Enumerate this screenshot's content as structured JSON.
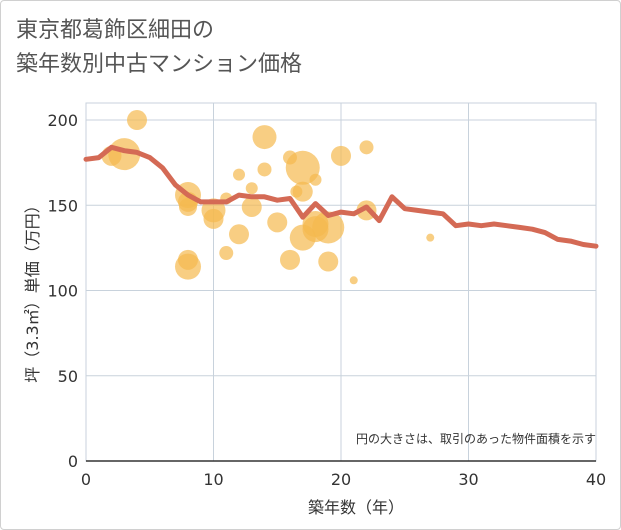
{
  "title": {
    "line1": "東京都葛飾区細田の",
    "line2": "築年数別中古マンション価格"
  },
  "colors": {
    "bubble": "#f5b94e",
    "line": "#d46a55",
    "grid": "#c8d2dc",
    "axis": "#333333"
  },
  "chart_data": {
    "type": "scatter",
    "xlabel": "築年数（年）",
    "ylabel": "坪（3.3㎡）単価（万円）",
    "xlim": [
      0,
      40
    ],
    "ylim": [
      0,
      210
    ],
    "xticks": [
      0,
      10,
      20,
      30,
      40
    ],
    "yticks": [
      0,
      50,
      100,
      150,
      200
    ],
    "grid": true,
    "annotation": "円の大きさは、取引のあった物件面積を示す",
    "bubbles": [
      {
        "x": 2,
        "y": 179,
        "s": 10
      },
      {
        "x": 3,
        "y": 180,
        "s": 16
      },
      {
        "x": 4,
        "y": 200,
        "s": 10
      },
      {
        "x": 8,
        "y": 156,
        "s": 13
      },
      {
        "x": 8,
        "y": 152,
        "s": 10
      },
      {
        "x": 8,
        "y": 149,
        "s": 9
      },
      {
        "x": 8,
        "y": 118,
        "s": 10
      },
      {
        "x": 8,
        "y": 114,
        "s": 13
      },
      {
        "x": 10,
        "y": 147,
        "s": 12
      },
      {
        "x": 10,
        "y": 142,
        "s": 10
      },
      {
        "x": 11,
        "y": 154,
        "s": 6
      },
      {
        "x": 11,
        "y": 122,
        "s": 7
      },
      {
        "x": 12,
        "y": 168,
        "s": 6
      },
      {
        "x": 12,
        "y": 133,
        "s": 10
      },
      {
        "x": 13,
        "y": 160,
        "s": 6
      },
      {
        "x": 13,
        "y": 149,
        "s": 10
      },
      {
        "x": 14,
        "y": 190,
        "s": 12
      },
      {
        "x": 14,
        "y": 171,
        "s": 7
      },
      {
        "x": 15,
        "y": 140,
        "s": 10
      },
      {
        "x": 16,
        "y": 178,
        "s": 7
      },
      {
        "x": 16,
        "y": 118,
        "s": 10
      },
      {
        "x": 16.5,
        "y": 158,
        "s": 6
      },
      {
        "x": 17,
        "y": 172,
        "s": 17
      },
      {
        "x": 17,
        "y": 158,
        "s": 10
      },
      {
        "x": 17,
        "y": 131,
        "s": 13
      },
      {
        "x": 18,
        "y": 165,
        "s": 6
      },
      {
        "x": 18,
        "y": 139,
        "s": 13
      },
      {
        "x": 18,
        "y": 136,
        "s": 13
      },
      {
        "x": 19,
        "y": 137,
        "s": 16
      },
      {
        "x": 19,
        "y": 117,
        "s": 10
      },
      {
        "x": 20,
        "y": 179,
        "s": 10
      },
      {
        "x": 21,
        "y": 106,
        "s": 4
      },
      {
        "x": 22,
        "y": 184,
        "s": 7
      },
      {
        "x": 22,
        "y": 147,
        "s": 10
      },
      {
        "x": 27,
        "y": 131,
        "s": 4
      }
    ],
    "trend": {
      "x": [
        0,
        1,
        2,
        3,
        4,
        5,
        6,
        7,
        8,
        9,
        10,
        11,
        12,
        13,
        14,
        15,
        16,
        17,
        18,
        19,
        20,
        21,
        22,
        23,
        24,
        25,
        26,
        27,
        28,
        29,
        30,
        31,
        32,
        33,
        34,
        35,
        36,
        37,
        38,
        39,
        40
      ],
      "y": [
        177,
        178,
        184,
        182,
        181,
        178,
        172,
        162,
        156,
        152,
        152,
        152,
        156,
        155,
        155,
        153,
        154,
        143,
        151,
        144,
        146,
        145,
        149,
        141,
        155,
        148,
        147,
        146,
        145,
        138,
        139,
        138,
        139,
        138,
        137,
        136,
        134,
        130,
        129,
        127,
        126
      ]
    }
  }
}
